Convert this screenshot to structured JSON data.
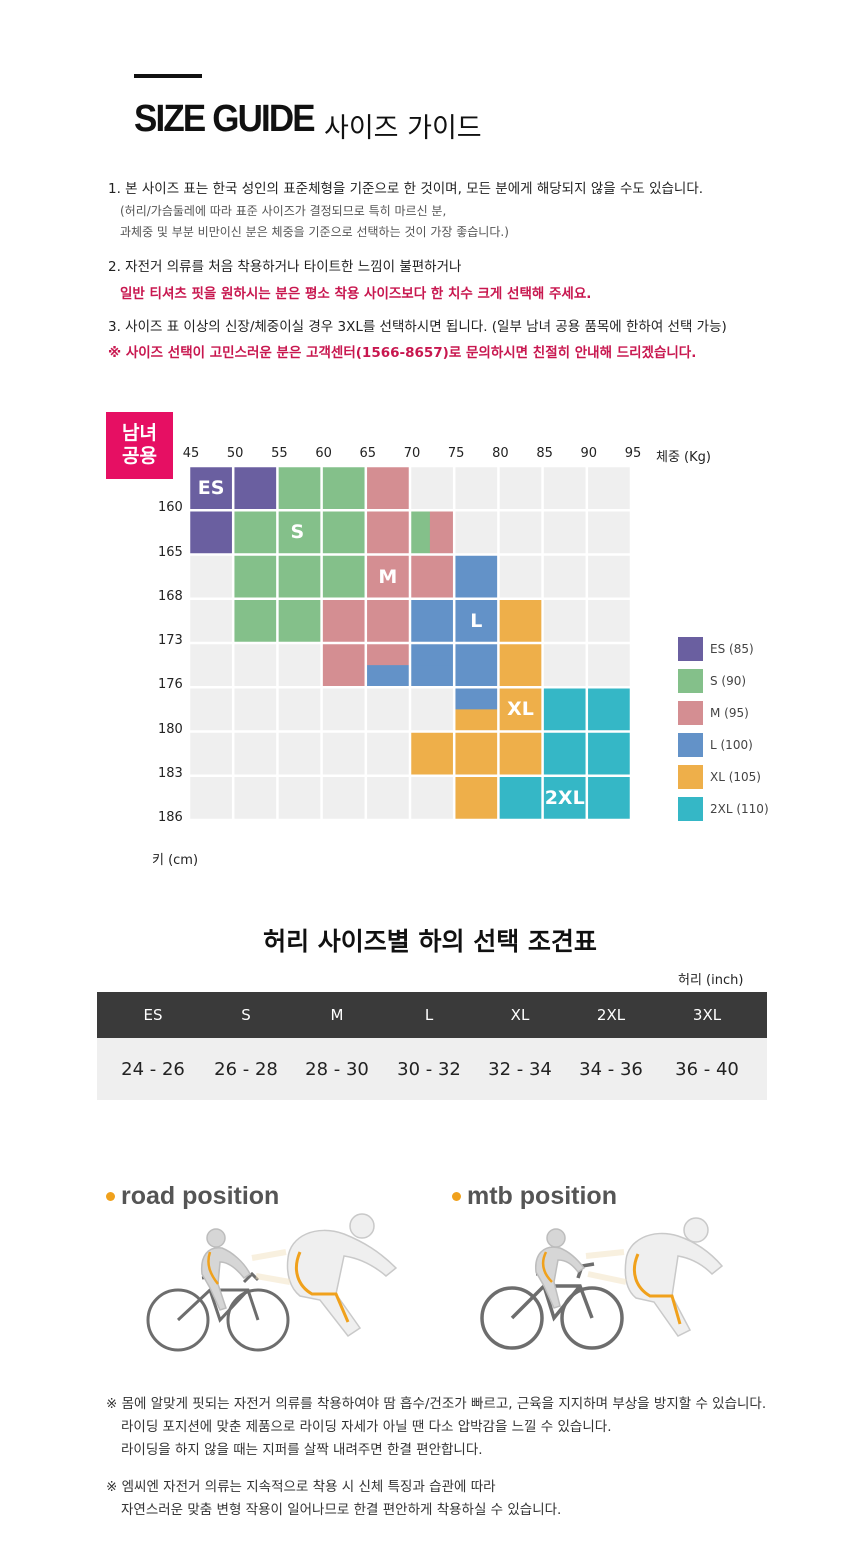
{
  "header": {
    "title_en": "SIZE GUIDE",
    "title_ko": "사이즈 가이드"
  },
  "notes": {
    "n1": "1. 본 사이즈 표는 한국 성인의 표준체형을 기준으로 한 것이며, 모든 분에게 해당되지 않을 수도 있습니다.",
    "n1_sub1": "(허리/가슴둘레에 따라 표준 사이즈가 결정되므로 특히 마르신 분,",
    "n1_sub2": "과체중 및 부분 비만이신 분은 체중을 기준으로 선택하는 것이 가장 좋습니다.)",
    "n2": "2. 자전거 의류를 처음 착용하거나 타이트한 느낌이 불편하거나",
    "n2_red": "일반 티셔츠 핏을 원하시는 분은 평소 착용 사이즈보다 한 치수 크게 선택해 주세요.",
    "n3": "3. 사이즈 표 이상의 신장/체중이실 경우 3XL를 선택하시면 됩니다. (일부 남녀 공용 품목에 한하여 선택 가능)",
    "n3_red": "※ 사이즈 선택이 고민스러운 분은 고객센터(1566-8657)로 문의하시면 친절히 안내해 드리겠습니다."
  },
  "size_chart": {
    "badge_line1": "남녀",
    "badge_line2": "공용",
    "weight_unit": "체중 (Kg)",
    "height_unit": "키 (cm)",
    "weights": [
      "45",
      "50",
      "55",
      "60",
      "65",
      "70",
      "75",
      "80",
      "85",
      "90",
      "95"
    ],
    "heights": [
      "160",
      "165",
      "168",
      "173",
      "176",
      "180",
      "183",
      "186"
    ],
    "sizes": [
      {
        "label": "ES",
        "legend": "ES (85)",
        "color": "#6a5fa0"
      },
      {
        "label": "S",
        "legend": "S (90)",
        "color": "#84c08a"
      },
      {
        "label": "M",
        "legend": "M (95)",
        "color": "#d48e92"
      },
      {
        "label": "L",
        "legend": "L (100)",
        "color": "#6392c8"
      },
      {
        "label": "XL",
        "legend": "XL (105)",
        "color": "#eeaf4a"
      },
      {
        "label": "2XL",
        "legend": "2XL (110)",
        "color": "#35b7c6"
      }
    ],
    "empty_color": "#efefef"
  },
  "waist": {
    "title": "허리 사이즈별 하의 선택 조견표",
    "unit": "허리 (inch)",
    "headers": [
      "ES",
      "S",
      "M",
      "L",
      "XL",
      "2XL",
      "3XL"
    ],
    "values": [
      "24 - 26",
      "26 - 28",
      "28 - 30",
      "30 - 32",
      "32 - 34",
      "34 - 36",
      "36 - 40"
    ]
  },
  "positions": {
    "road": "road position",
    "mtb": "mtb position"
  },
  "footer": {
    "f1": "※ 몸에 알맞게 핏되는 자전거 의류를 착용하여야 땀 흡수/건조가 빠르고, 근육을 지지하며 부상을 방지할 수 있습니다.",
    "f1_2": "라이딩 포지션에 맞춘 제품으로 라이딩 자세가 아닐 땐 다소 압박감을 느낄 수 있습니다.",
    "f1_3": "라이딩을 하지 않을 때는 지퍼를 살짝 내려주면 한결 편안합니다.",
    "f2": "※ 엠씨엔 자전거 의류는 지속적으로 착용 시 신체 특징과 습관에 따라",
    "f2_2": "자연스러운 맞춤 변형 작용이 일어나므로 한결 편안하게 착용하실 수 있습니다."
  }
}
